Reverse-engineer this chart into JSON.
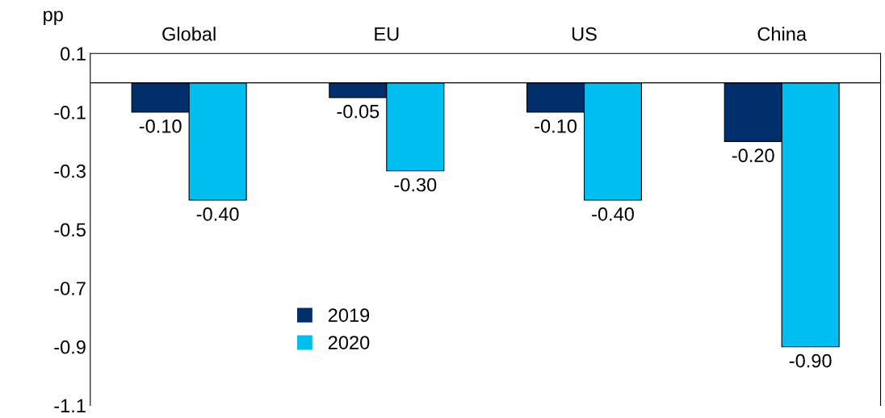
{
  "chart_data": {
    "type": "bar",
    "ylabel": "pp",
    "categories": [
      "Global",
      "EU",
      "US",
      "China"
    ],
    "series": [
      {
        "name": "2019",
        "color": "#002f6c",
        "values": [
          -0.1,
          -0.05,
          -0.1,
          -0.2
        ],
        "value_labels": [
          "-0.10",
          "-0.05",
          "-0.10",
          "-0.20"
        ]
      },
      {
        "name": "2020",
        "color": "#00bff0",
        "values": [
          -0.4,
          -0.3,
          -0.4,
          -0.9
        ],
        "value_labels": [
          "-0.40",
          "-0.30",
          "-0.40",
          "-0.90"
        ]
      }
    ],
    "ylim": [
      -1.1,
      0.1
    ],
    "yticks": [
      {
        "value": 0.1,
        "label": "0.1"
      },
      {
        "value": -0.1,
        "label": "-0.1"
      },
      {
        "value": -0.3,
        "label": "-0.3"
      },
      {
        "value": -0.5,
        "label": "-0.5"
      },
      {
        "value": -0.7,
        "label": "-0.7"
      },
      {
        "value": -0.9,
        "label": "-0.9"
      },
      {
        "value": -1.1,
        "label": "-1.1"
      }
    ],
    "grid": false,
    "legend": "bottom"
  }
}
